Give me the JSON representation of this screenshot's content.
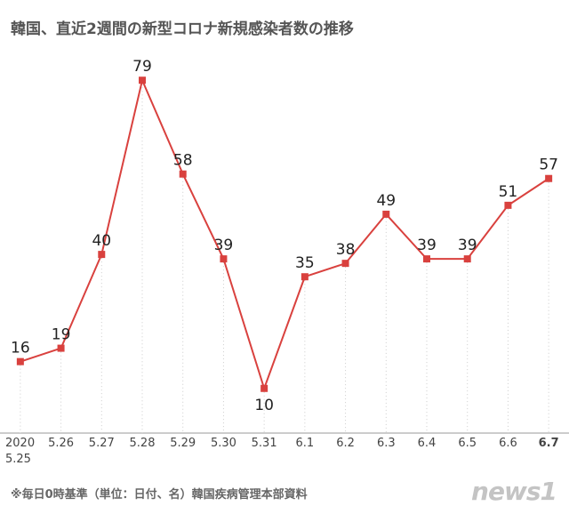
{
  "chart_data": {
    "type": "line",
    "title": "韓国、直近2週間の新型コロナ新規感染者数の推移",
    "categories": [
      "2020\n5.25",
      "5.26",
      "5.27",
      "5.28",
      "5.29",
      "5.30",
      "5.31",
      "6.1",
      "6.2",
      "6.3",
      "6.4",
      "6.5",
      "6.6",
      "6.7"
    ],
    "series": [
      {
        "name": "新規感染者数",
        "color": "#d9413e",
        "values": [
          16,
          19,
          40,
          79,
          58,
          39,
          10,
          35,
          38,
          49,
          39,
          39,
          51,
          57
        ]
      }
    ],
    "ylim": [
      0,
      90
    ],
    "note": "※毎日0時基準（単位：日付、名）韓国疾病管理本部資料",
    "logo": "news1"
  }
}
